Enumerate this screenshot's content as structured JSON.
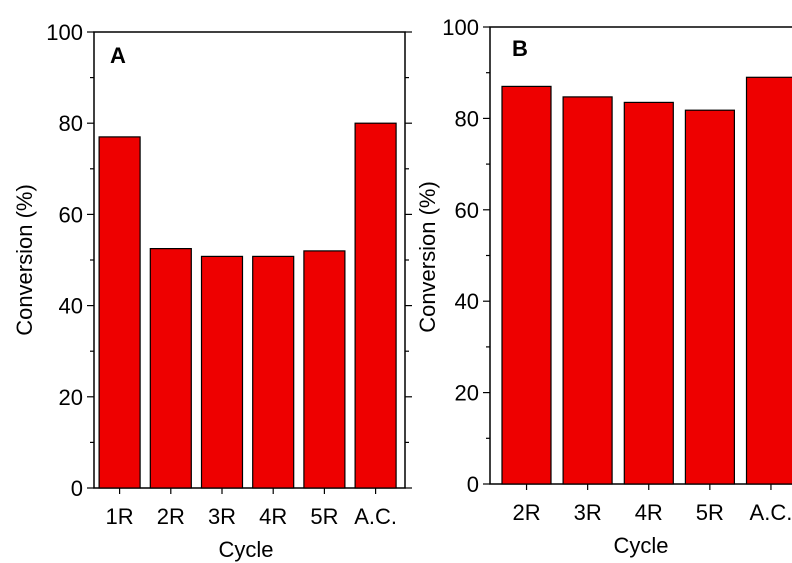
{
  "colors": {
    "bar_fill": "#ee0000",
    "bar_stroke": "#000000"
  },
  "chart_data": [
    {
      "type": "bar",
      "panel_label": "A",
      "categories": [
        "1R",
        "2R",
        "3R",
        "4R",
        "5R",
        "A.C."
      ],
      "values": [
        77,
        52.5,
        50.8,
        50.8,
        52,
        80
      ],
      "xlabel": "Cycle",
      "ylabel": "Conversion (%)",
      "ylim": [
        0,
        100
      ],
      "yticks": [
        "0",
        "20",
        "40",
        "60",
        "80",
        "100"
      ],
      "grid": false
    },
    {
      "type": "bar",
      "panel_label": "B",
      "categories": [
        "2R",
        "3R",
        "4R",
        "5R",
        "A.C."
      ],
      "values": [
        87,
        84.7,
        83.5,
        81.8,
        89
      ],
      "xlabel": "Cycle",
      "ylabel": "Conversion (%)",
      "ylim": [
        0,
        100
      ],
      "yticks": [
        "0",
        "20",
        "40",
        "60",
        "80",
        "100"
      ],
      "grid": false
    }
  ]
}
